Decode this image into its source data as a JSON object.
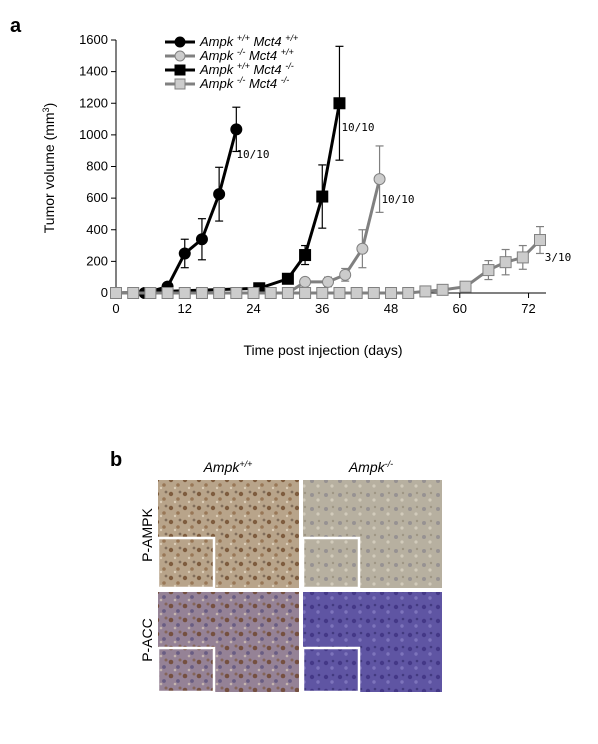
{
  "figure": {
    "panel_a_label": "a",
    "panel_b_label": "b"
  },
  "chart_data": {
    "type": "line",
    "title": "",
    "xlabel": "Time post injection (days)",
    "ylabel": "Tumor volume (mm³)",
    "xlim": [
      0,
      74
    ],
    "ylim": [
      0,
      1600
    ],
    "xticks": [
      0,
      12,
      24,
      36,
      48,
      60,
      72
    ],
    "yticks": [
      0,
      200,
      400,
      600,
      800,
      1000,
      1200,
      1400,
      1600
    ],
    "grid": false,
    "legend_position": "top-left",
    "series": [
      {
        "name": "Ampk +/+ Mct4 +/+",
        "gene1": "Ampk",
        "geno1": "+/+",
        "gene2": "Mct4",
        "geno2": "+/+",
        "color": "#000000",
        "fill": "#000000",
        "marker": "circle",
        "x": [
          0,
          5,
          9,
          12,
          15,
          18,
          21
        ],
        "y": [
          0,
          0,
          40,
          250,
          340,
          625,
          1035
        ],
        "err": [
          0,
          0,
          20,
          90,
          130,
          170,
          140
        ],
        "annotation": "10/10"
      },
      {
        "name": "Ampk -/- Mct4 +/+",
        "gene1": "Ampk",
        "geno1": "-/-",
        "gene2": "Mct4",
        "geno2": "+/+",
        "color": "#808080",
        "fill": "#cccccc",
        "marker": "circle",
        "x": [
          0,
          6,
          9,
          12,
          15,
          18,
          21,
          24,
          27,
          30,
          33,
          37,
          40,
          43,
          46
        ],
        "y": [
          0,
          0,
          0,
          0,
          0,
          0,
          0,
          0,
          0,
          0,
          70,
          70,
          115,
          280,
          720
        ],
        "err": [
          0,
          0,
          0,
          0,
          0,
          0,
          0,
          0,
          0,
          0,
          20,
          30,
          40,
          120,
          210
        ],
        "annotation": "10/10"
      },
      {
        "name": "Ampk +/+ Mct4 -/-",
        "gene1": "Ampk",
        "geno1": "+/+",
        "gene2": "Mct4",
        "geno2": "-/-",
        "color": "#000000",
        "fill": "#000000",
        "marker": "square",
        "x": [
          0,
          25,
          30,
          33,
          36,
          39
        ],
        "y": [
          0,
          30,
          90,
          240,
          610,
          1200
        ],
        "err": [
          0,
          10,
          25,
          60,
          200,
          360
        ],
        "annotation": "10/10"
      },
      {
        "name": "Ampk -/- Mct4 -/-",
        "gene1": "Ampk",
        "geno1": "-/-",
        "gene2": "Mct4",
        "geno2": "-/-",
        "color": "#808080",
        "fill": "#cccccc",
        "marker": "square",
        "x": [
          0,
          3,
          6,
          9,
          12,
          15,
          18,
          21,
          24,
          27,
          30,
          33,
          36,
          39,
          42,
          45,
          48,
          51,
          54,
          57,
          61,
          65,
          68,
          71,
          74
        ],
        "y": [
          0,
          0,
          0,
          0,
          0,
          0,
          0,
          0,
          0,
          0,
          0,
          0,
          0,
          0,
          0,
          0,
          0,
          0,
          10,
          20,
          40,
          145,
          195,
          225,
          335
        ],
        "err": [
          0,
          0,
          0,
          0,
          0,
          0,
          0,
          0,
          0,
          0,
          0,
          0,
          0,
          0,
          0,
          0,
          0,
          0,
          5,
          10,
          20,
          60,
          80,
          75,
          85
        ],
        "annotation": "3/10"
      }
    ]
  },
  "ihc": {
    "columns": [
      {
        "gene": "Ampk",
        "genotype": "+/+"
      },
      {
        "gene": "Ampk",
        "genotype": "-/-"
      }
    ],
    "rows": [
      {
        "label": "P-AMPK"
      },
      {
        "label": "P-ACC"
      }
    ],
    "panel_colors": [
      [
        "#b69c7f",
        "#b3a997"
      ],
      [
        "#8f7a86",
        "#5a4f9c"
      ]
    ]
  }
}
